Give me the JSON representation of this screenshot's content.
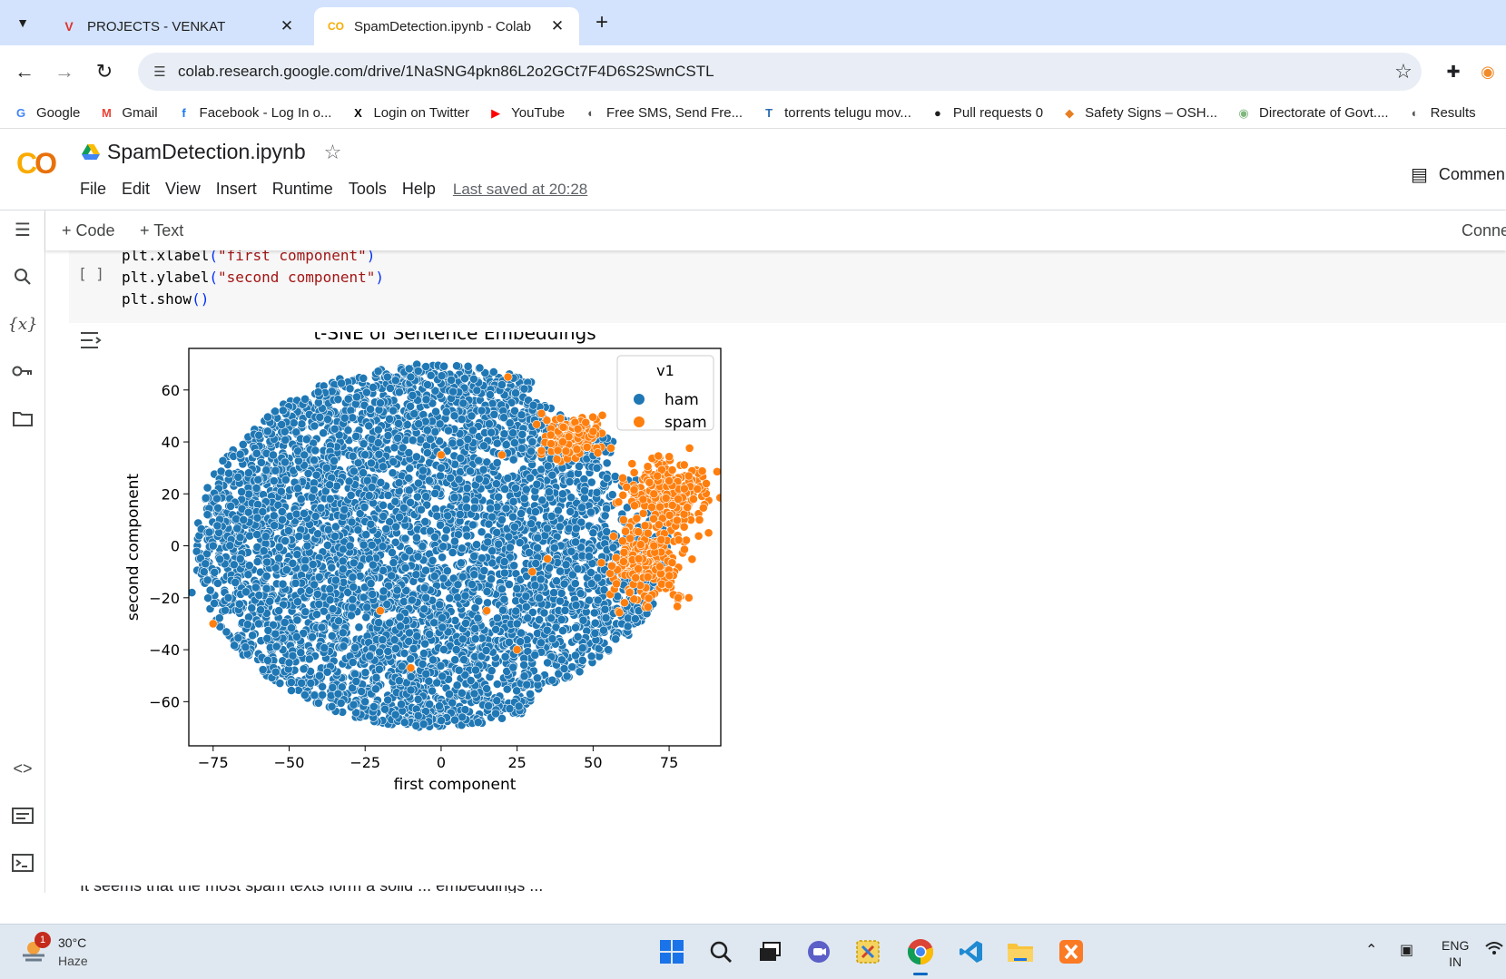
{
  "browser": {
    "tabs": [
      {
        "title": "PROJECTS - VENKAT",
        "favicon": "V"
      },
      {
        "title": "SpamDetection.ipynb - Colab",
        "favicon": "CO"
      }
    ],
    "url": "colab.research.google.com/drive/1NaSNG4pkn86L2o2GCt7F4D6S2SwnCSTL",
    "bookmarks": [
      {
        "label": "Google",
        "icon": "G",
        "color": "#4285f4"
      },
      {
        "label": "Gmail",
        "icon": "M",
        "color": "#ea4335"
      },
      {
        "label": "Facebook - Log In o...",
        "icon": "f",
        "color": "#1877f2"
      },
      {
        "label": "Login on Twitter",
        "icon": "X",
        "color": "#000000"
      },
      {
        "label": "YouTube",
        "icon": "▶",
        "color": "#ff0000"
      },
      {
        "label": "Free SMS, Send Fre...",
        "icon": "◐",
        "color": "#555555"
      },
      {
        "label": "torrents telugu mov...",
        "icon": "T",
        "color": "#2b6cb0"
      },
      {
        "label": "Pull requests 0",
        "icon": "●",
        "color": "#1f1f1f"
      },
      {
        "label": "Safety Signs – OSH...",
        "icon": "◆",
        "color": "#e67e22"
      },
      {
        "label": "Directorate of Govt....",
        "icon": "◉",
        "color": "#7fb77e"
      },
      {
        "label": "Results",
        "icon": "◐",
        "color": "#555555"
      }
    ]
  },
  "colab": {
    "logo": "CO",
    "notebook_title": "SpamDetection.ipynb",
    "menu": [
      "File",
      "Edit",
      "View",
      "Insert",
      "Runtime",
      "Tools",
      "Help"
    ],
    "last_saved": "Last saved at 20:28",
    "comment_label": "Commen",
    "add_code": "+ Code",
    "add_text": "+ Text",
    "connect_label": "Conne",
    "run_indicator": "[ ]",
    "code_lines": [
      {
        "fn": "plt.xlabel",
        "arg": "\"first component\""
      },
      {
        "fn": "plt.ylabel",
        "arg": "\"second component\""
      },
      {
        "fn": "plt.show",
        "arg": ""
      }
    ],
    "below_text": "It seems that the most spam texts form a solid ... embeddings ..."
  },
  "chart_data": {
    "type": "scatter",
    "title": "t-SNE of Sentence Embeddings",
    "xlabel": "first component",
    "ylabel": "second component",
    "xlim": [
      -83,
      92
    ],
    "ylim": [
      -77,
      76
    ],
    "xticks": [
      -75,
      -50,
      -25,
      0,
      25,
      50,
      75
    ],
    "yticks": [
      -60,
      -40,
      -20,
      0,
      20,
      40,
      60
    ],
    "legend": {
      "title": "v1",
      "placement": "top-right"
    },
    "grid": false,
    "series": [
      {
        "name": "ham",
        "color": "#1f77b4",
        "approx_count": 4800,
        "description_regions": "dense elliptical cloud spanning x from -80 to 80, y from -70 to 70",
        "sample_points": [
          [
            -78,
            -10
          ],
          [
            -75,
            0
          ],
          [
            -70,
            -20
          ],
          [
            -65,
            10
          ],
          [
            -60,
            -30
          ],
          [
            -55,
            25
          ],
          [
            -50,
            -45
          ],
          [
            -45,
            35
          ],
          [
            -40,
            -50
          ],
          [
            -35,
            45
          ],
          [
            -30,
            0
          ],
          [
            -25,
            -60
          ],
          [
            -20,
            55
          ],
          [
            -15,
            -65
          ],
          [
            -10,
            65
          ],
          [
            -5,
            -20
          ],
          [
            0,
            30
          ],
          [
            5,
            -40
          ],
          [
            10,
            50
          ],
          [
            15,
            -55
          ],
          [
            20,
            10
          ],
          [
            25,
            -30
          ],
          [
            30,
            40
          ],
          [
            35,
            -45
          ],
          [
            40,
            20
          ],
          [
            45,
            -35
          ],
          [
            50,
            5
          ],
          [
            55,
            -40
          ],
          [
            60,
            -15
          ],
          [
            65,
            -25
          ],
          [
            70,
            -5
          ],
          [
            -82,
            -18
          ],
          [
            -12,
            -68
          ],
          [
            -5,
            69
          ],
          [
            20,
            62
          ]
        ]
      },
      {
        "name": "spam",
        "color": "#ff7f0e",
        "approx_count": 650,
        "description_regions": "clusters near (45,40), (75,20), (68,-5) plus scattered points",
        "sample_points": [
          [
            42,
            42
          ],
          [
            45,
            45
          ],
          [
            48,
            38
          ],
          [
            40,
            40
          ],
          [
            50,
            44
          ],
          [
            70,
            20
          ],
          [
            75,
            25
          ],
          [
            78,
            18
          ],
          [
            80,
            22
          ],
          [
            72,
            15
          ],
          [
            85,
            10
          ],
          [
            88,
            5
          ],
          [
            65,
            -5
          ],
          [
            70,
            0
          ],
          [
            72,
            -8
          ],
          [
            68,
            -12
          ],
          [
            75,
            -15
          ],
          [
            62,
            -18
          ],
          [
            78,
            -20
          ],
          [
            22,
            65
          ],
          [
            -75,
            -30
          ],
          [
            -20,
            -25
          ],
          [
            -10,
            -47
          ],
          [
            25,
            -40
          ],
          [
            15,
            -25
          ],
          [
            30,
            -10
          ],
          [
            35,
            -5
          ],
          [
            0,
            35
          ],
          [
            20,
            35
          ],
          [
            60,
            10
          ]
        ]
      }
    ]
  },
  "taskbar": {
    "weather_temp": "30°C",
    "weather_desc": "Haze",
    "weather_badge": "1",
    "lang_line1": "ENG",
    "lang_line2": "IN"
  }
}
